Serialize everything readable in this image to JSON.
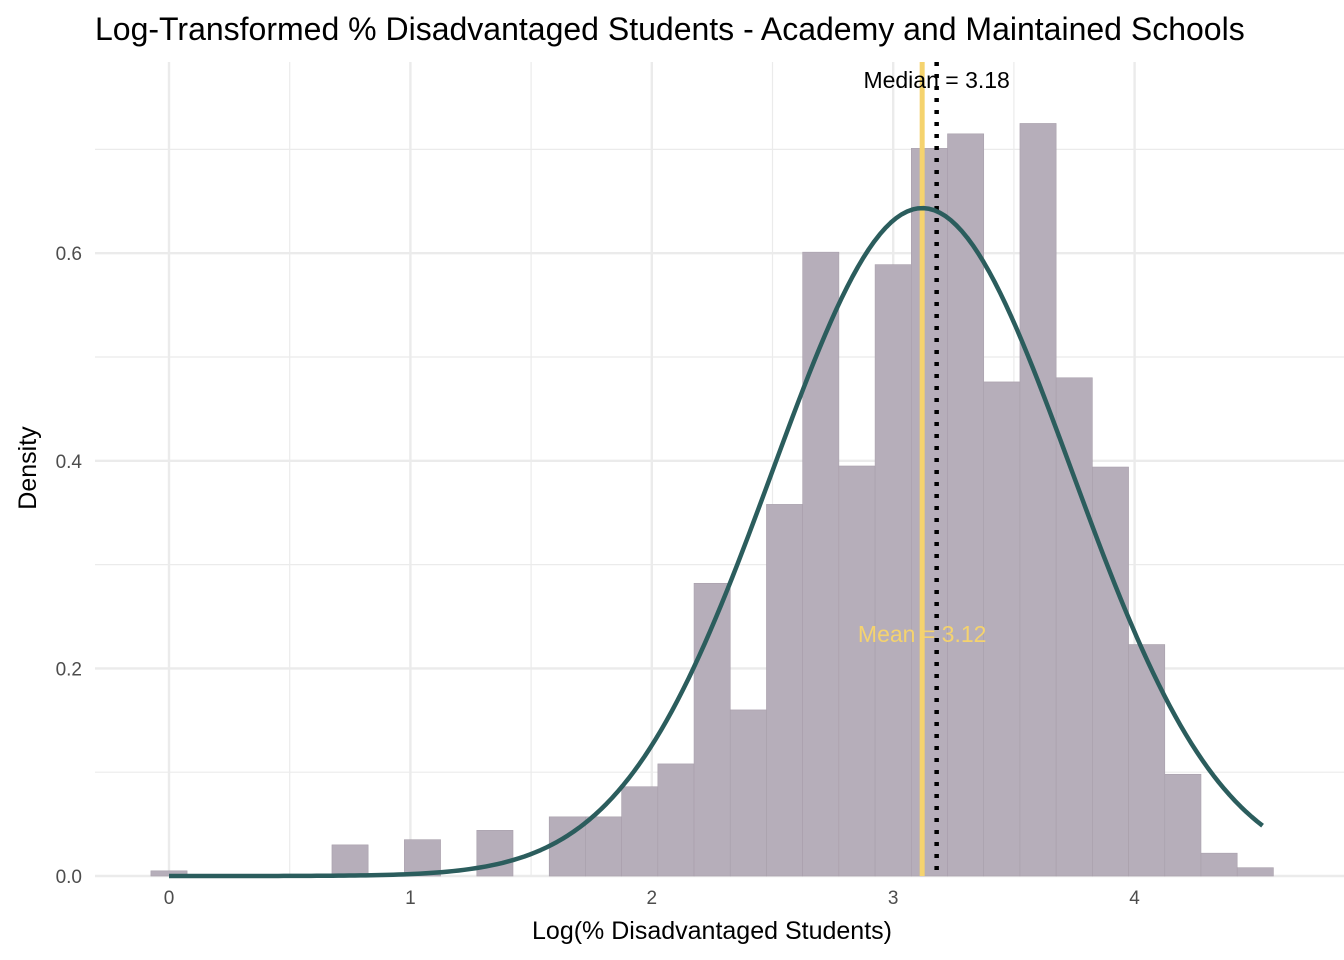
{
  "chart_data": {
    "type": "bar",
    "title": "Log-Transformed % Disadvantaged Students - Academy and Maintained Schools",
    "xlabel": "Log(% Disadvantaged Students)",
    "ylabel": "Density",
    "xlim": [
      -0.3,
      4.8
    ],
    "ylim": [
      0,
      0.78
    ],
    "x_ticks": [
      0,
      1,
      2,
      3,
      4
    ],
    "x_tick_labels": [
      "0",
      "1",
      "2",
      "3",
      "4"
    ],
    "y_ticks": [
      0.0,
      0.2,
      0.4,
      0.6
    ],
    "y_tick_labels": [
      "0.0",
      "0.2",
      "0.4",
      "0.6"
    ],
    "grid": true,
    "bin_width": 0.15,
    "bins": [
      {
        "x0": -0.075,
        "x1": 0.075,
        "density": 0.005
      },
      {
        "x0": 0.675,
        "x1": 0.825,
        "density": 0.03
      },
      {
        "x0": 0.975,
        "x1": 1.125,
        "density": 0.035
      },
      {
        "x0": 1.275,
        "x1": 1.425,
        "density": 0.044
      },
      {
        "x0": 1.575,
        "x1": 1.725,
        "density": 0.057
      },
      {
        "x0": 1.725,
        "x1": 1.875,
        "density": 0.057
      },
      {
        "x0": 1.875,
        "x1": 2.025,
        "density": 0.086
      },
      {
        "x0": 2.025,
        "x1": 2.175,
        "density": 0.108
      },
      {
        "x0": 2.175,
        "x1": 2.325,
        "density": 0.282
      },
      {
        "x0": 2.325,
        "x1": 2.475,
        "density": 0.16
      },
      {
        "x0": 2.475,
        "x1": 2.625,
        "density": 0.358
      },
      {
        "x0": 2.625,
        "x1": 2.775,
        "density": 0.601
      },
      {
        "x0": 2.775,
        "x1": 2.925,
        "density": 0.395
      },
      {
        "x0": 2.925,
        "x1": 3.075,
        "density": 0.589
      },
      {
        "x0": 3.075,
        "x1": 3.225,
        "density": 0.701
      },
      {
        "x0": 3.225,
        "x1": 3.375,
        "density": 0.715
      },
      {
        "x0": 3.375,
        "x1": 3.525,
        "density": 0.476
      },
      {
        "x0": 3.525,
        "x1": 3.675,
        "density": 0.725
      },
      {
        "x0": 3.675,
        "x1": 3.825,
        "density": 0.48
      },
      {
        "x0": 3.825,
        "x1": 3.975,
        "density": 0.394
      },
      {
        "x0": 3.975,
        "x1": 4.125,
        "density": 0.223
      },
      {
        "x0": 4.125,
        "x1": 4.275,
        "density": 0.098
      },
      {
        "x0": 4.275,
        "x1": 4.425,
        "density": 0.022
      },
      {
        "x0": 4.425,
        "x1": 4.575,
        "density": 0.008
      }
    ],
    "normal_curve": {
      "mean": 3.12,
      "sd": 0.62,
      "x_range": [
        0,
        4.53
      ],
      "color": "#2b5d5d"
    },
    "mean_line": {
      "value": 3.12,
      "label": "Mean = 3.12",
      "label_y": 0.233,
      "color": "#f5d36e"
    },
    "median_line": {
      "value": 3.18,
      "label": "Median = 3.18",
      "label_y": 0.767,
      "color": "#000000"
    },
    "colors": {
      "bar_fill": "#b6aeba",
      "bar_stroke": "#a89fab",
      "grid": "#ebebeb"
    }
  }
}
